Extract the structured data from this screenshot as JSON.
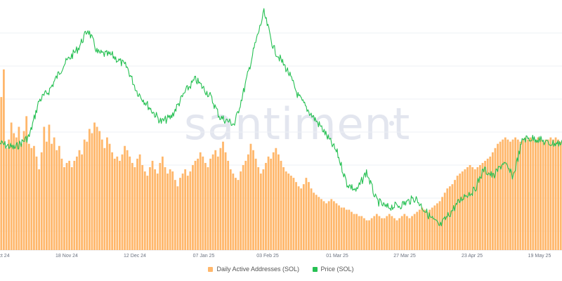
{
  "watermark": "santiment",
  "legend": [
    {
      "label": "Daily Active Addresses (SOL)",
      "color": "#ffb76b"
    },
    {
      "label": "Price (SOL)",
      "color": "#26c053"
    }
  ],
  "chart_data": {
    "type": "bar+line",
    "x_ticks": [
      {
        "label": "ct 24",
        "day": 0
      },
      {
        "label": "18 Nov 24",
        "day": 42
      },
      {
        "label": "12 Dec 24",
        "day": 66
      },
      {
        "label": "07 Jan 25",
        "day": 92
      },
      {
        "label": "03 Feb 25",
        "day": 119
      },
      {
        "label": "01 Mar 25",
        "day": 145
      },
      {
        "label": "27 Mar 25",
        "day": 171
      },
      {
        "label": "23 Apr 25",
        "day": 198
      },
      {
        "label": "19 May 25",
        "day": 224
      }
    ],
    "grid": true,
    "legend_position": "bottom",
    "series": [
      {
        "name": "Daily Active Addresses (SOL)",
        "type": "bar",
        "color": "#ffb76b",
        "values": [
          0.72,
          0.85,
          0.48,
          0.52,
          0.6,
          0.55,
          0.53,
          0.58,
          0.5,
          0.56,
          0.63,
          0.5,
          0.48,
          0.49,
          0.44,
          0.38,
          0.46,
          0.58,
          0.51,
          0.59,
          0.5,
          0.53,
          0.47,
          0.49,
          0.43,
          0.39,
          0.41,
          0.42,
          0.39,
          0.42,
          0.44,
          0.47,
          0.45,
          0.52,
          0.51,
          0.57,
          0.55,
          0.6,
          0.58,
          0.56,
          0.52,
          0.48,
          0.53,
          0.5,
          0.46,
          0.43,
          0.44,
          0.42,
          0.45,
          0.49,
          0.47,
          0.44,
          0.41,
          0.39,
          0.43,
          0.45,
          0.4,
          0.37,
          0.35,
          0.39,
          0.42,
          0.38,
          0.36,
          0.41,
          0.44,
          0.39,
          0.36,
          0.38,
          0.37,
          0.33,
          0.3,
          0.34,
          0.36,
          0.38,
          0.35,
          0.37,
          0.4,
          0.42,
          0.43,
          0.46,
          0.44,
          0.41,
          0.39,
          0.43,
          0.45,
          0.47,
          0.44,
          0.48,
          0.51,
          0.46,
          0.42,
          0.38,
          0.36,
          0.34,
          0.33,
          0.37,
          0.4,
          0.42,
          0.45,
          0.5,
          0.47,
          0.43,
          0.39,
          0.36,
          0.38,
          0.41,
          0.44,
          0.43,
          0.46,
          0.48,
          0.45,
          0.42,
          0.39,
          0.37,
          0.36,
          0.35,
          0.34,
          0.32,
          0.3,
          0.29,
          0.31,
          0.34,
          0.32,
          0.29,
          0.27,
          0.26,
          0.25,
          0.24,
          0.23,
          0.22,
          0.23,
          0.24,
          0.23,
          0.22,
          0.21,
          0.2,
          0.2,
          0.19,
          0.19,
          0.18,
          0.17,
          0.17,
          0.16,
          0.16,
          0.15,
          0.14,
          0.14,
          0.15,
          0.16,
          0.17,
          0.16,
          0.15,
          0.15,
          0.16,
          0.17,
          0.16,
          0.15,
          0.14,
          0.15,
          0.16,
          0.17,
          0.16,
          0.15,
          0.16,
          0.17,
          0.18,
          0.19,
          0.2,
          0.19,
          0.18,
          0.19,
          0.2,
          0.21,
          0.22,
          0.23,
          0.25,
          0.27,
          0.29,
          0.3,
          0.31,
          0.33,
          0.35,
          0.36,
          0.37,
          0.38,
          0.39,
          0.4,
          0.39,
          0.38,
          0.39,
          0.4,
          0.41,
          0.42,
          0.43,
          0.44,
          0.46,
          0.48,
          0.5,
          0.51,
          0.52,
          0.53,
          0.52,
          0.51,
          0.52,
          0.53,
          0.52,
          0.51,
          0.52,
          0.53,
          0.52,
          0.53,
          0.52,
          0.52,
          0.53,
          0.52,
          0.51,
          0.52,
          0.52,
          0.53,
          0.52,
          0.53,
          0.52,
          0.51
        ]
      },
      {
        "name": "Price (SOL)",
        "type": "line",
        "color": "#26c053"
      }
    ]
  }
}
